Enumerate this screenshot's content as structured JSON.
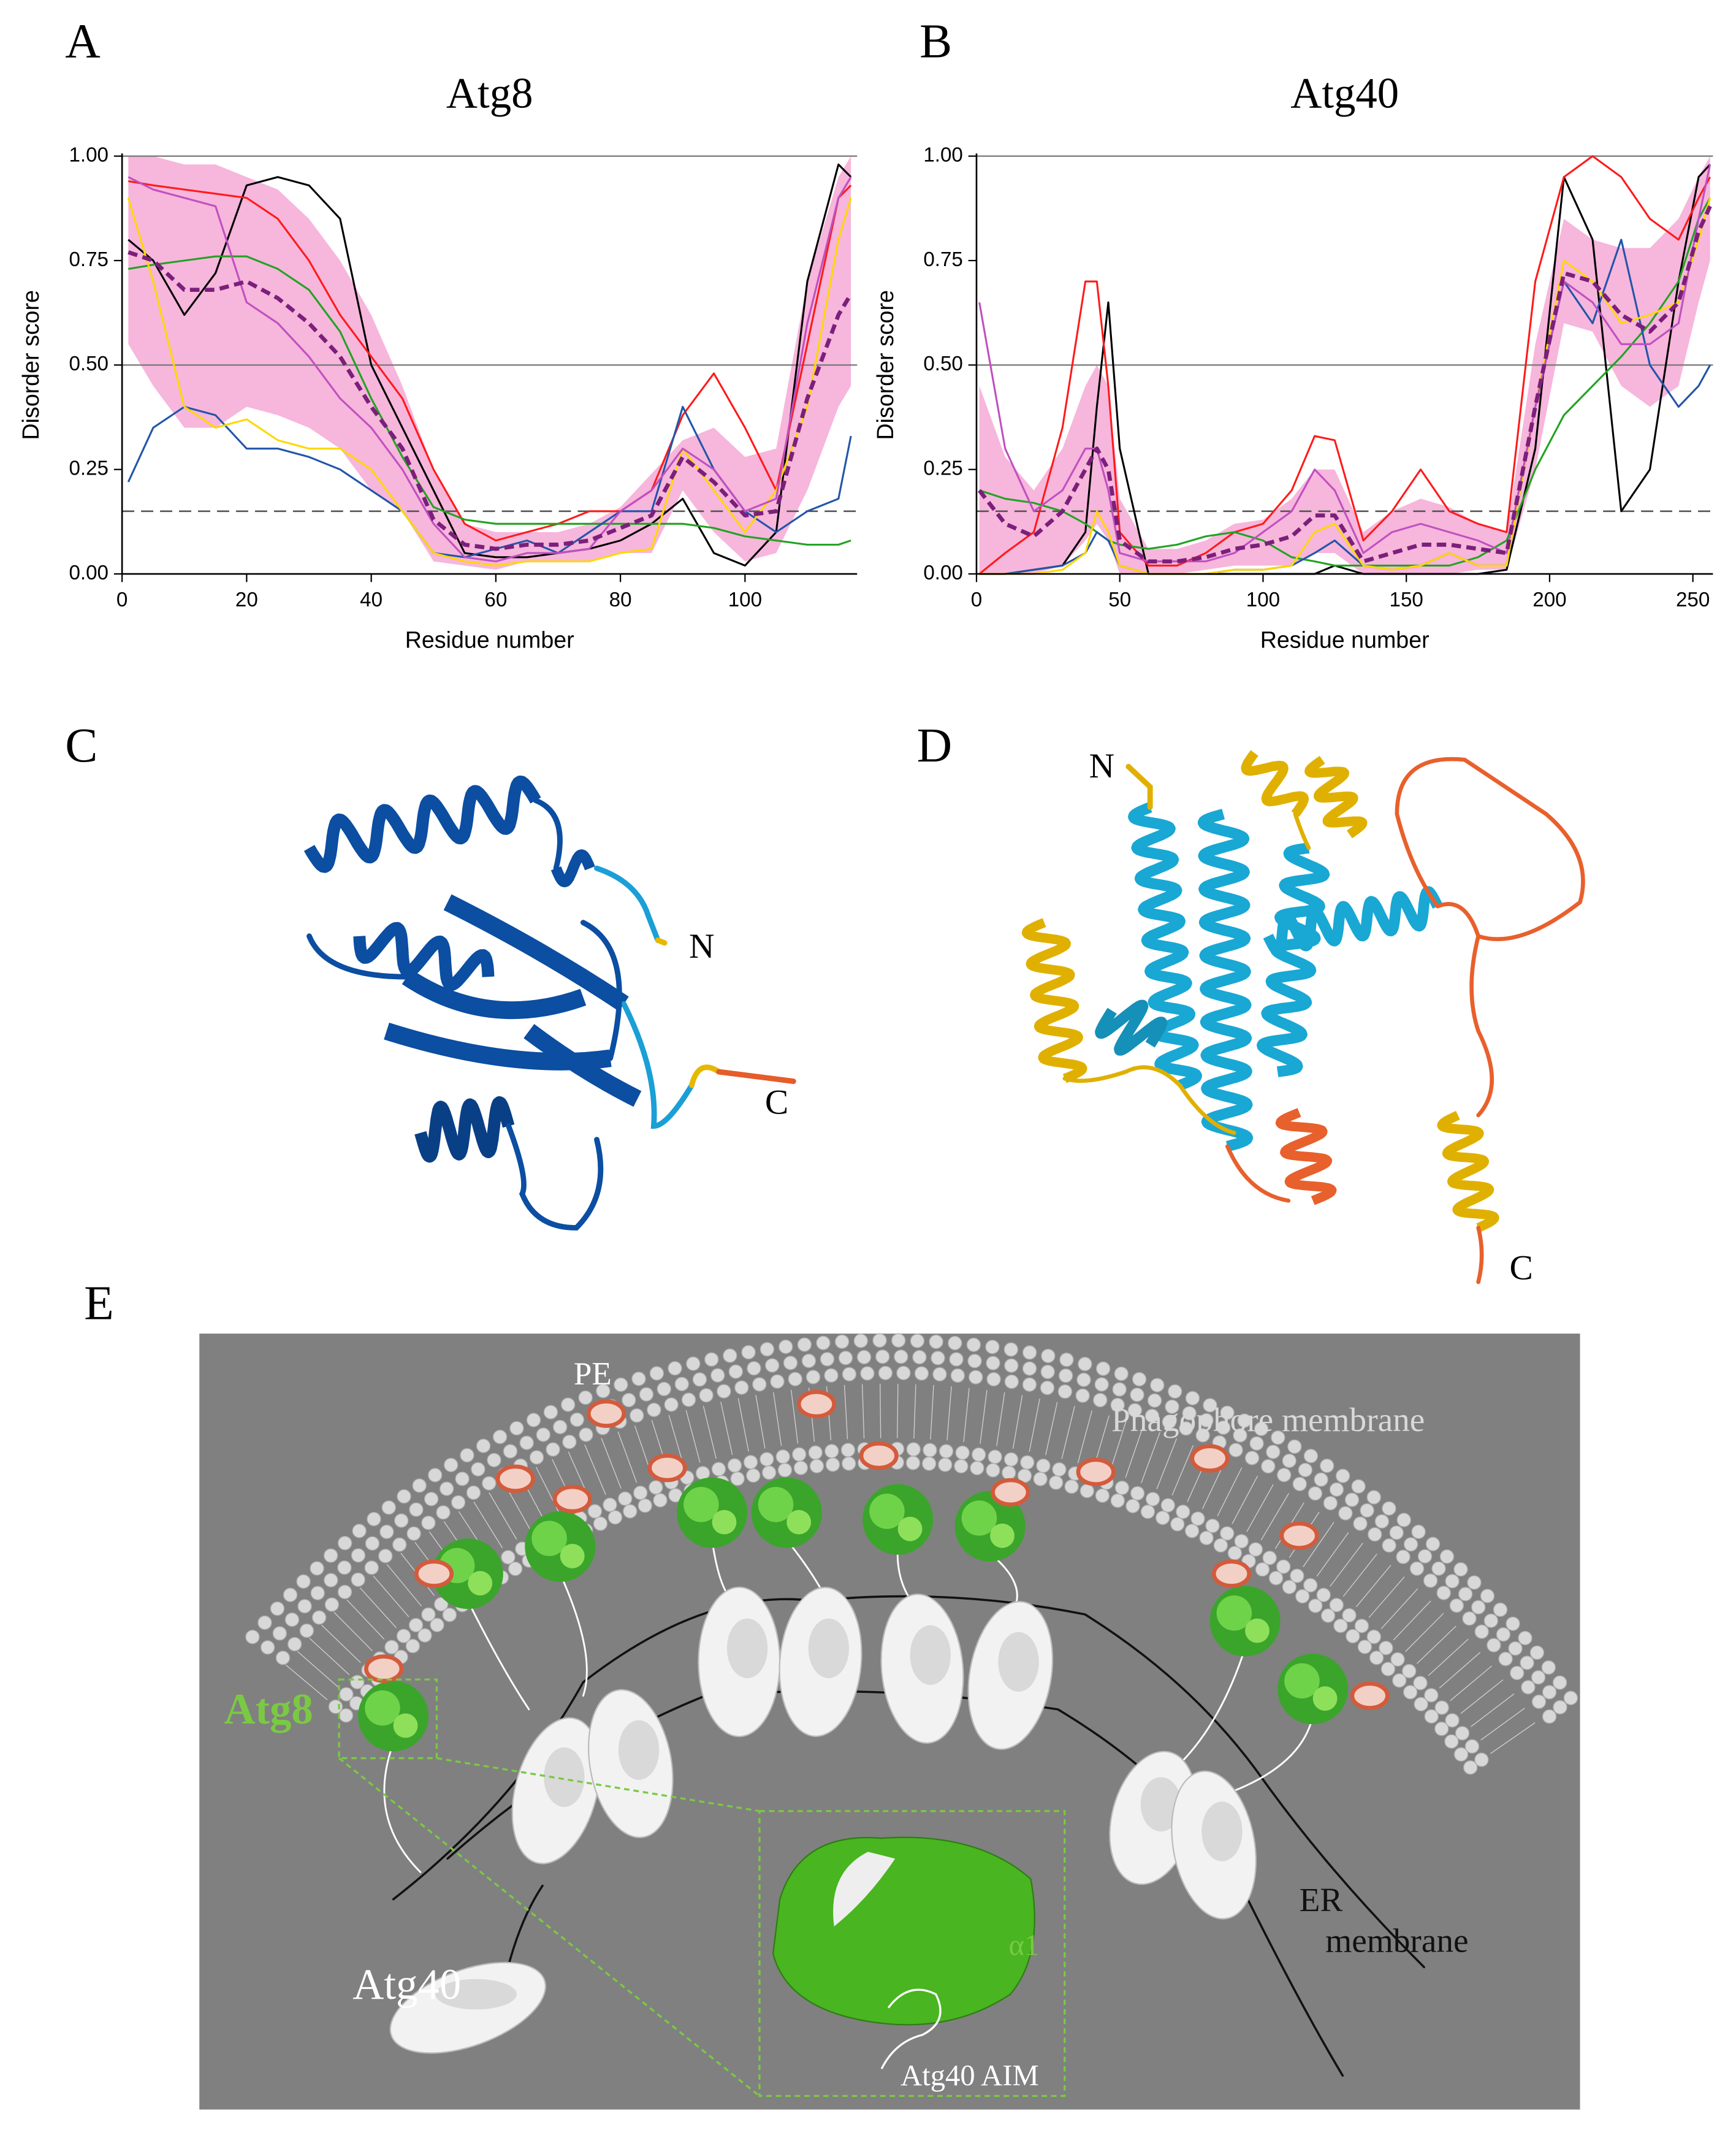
{
  "chart_data": [
    {
      "type": "line",
      "label": "A",
      "title": "Atg8",
      "xlabel": "Residue number",
      "ylabel": "Disorder score",
      "x": [
        1,
        5,
        10,
        15,
        20,
        25,
        30,
        35,
        40,
        45,
        50,
        55,
        60,
        65,
        70,
        75,
        80,
        85,
        90,
        95,
        100,
        105,
        110,
        115,
        117
      ],
      "xlim": [
        0,
        118
      ],
      "xticks": [
        0,
        20,
        40,
        60,
        80,
        100
      ],
      "ylim": [
        0,
        1
      ],
      "yticks": [
        {
          "value": 0,
          "label": "0.00"
        },
        {
          "value": 0.25,
          "label": "0.25"
        },
        {
          "value": 0.5,
          "label": "0.50"
        },
        {
          "value": 0.75,
          "label": "0.75"
        },
        {
          "value": 1,
          "label": "1.00"
        }
      ],
      "hlines": [
        0.5,
        1
      ],
      "threshold": 0.15,
      "band": {
        "color": "#f7b6dc",
        "upper": [
          1.0,
          1.0,
          0.98,
          0.98,
          0.95,
          0.92,
          0.85,
          0.75,
          0.62,
          0.45,
          0.25,
          0.12,
          0.1,
          0.1,
          0.1,
          0.12,
          0.16,
          0.24,
          0.32,
          0.35,
          0.28,
          0.3,
          0.7,
          0.95,
          1.0
        ],
        "lower": [
          0.55,
          0.45,
          0.35,
          0.35,
          0.4,
          0.38,
          0.35,
          0.3,
          0.2,
          0.15,
          0.03,
          0.02,
          0.01,
          0.03,
          0.03,
          0.03,
          0.05,
          0.05,
          0.2,
          0.1,
          0.03,
          0.05,
          0.2,
          0.4,
          0.45
        ]
      },
      "series": [
        {
          "color": "#000000",
          "values": [
            0.8,
            0.75,
            0.62,
            0.72,
            0.93,
            0.95,
            0.93,
            0.85,
            0.5,
            0.35,
            0.2,
            0.05,
            0.04,
            0.04,
            0.05,
            0.06,
            0.08,
            0.12,
            0.18,
            0.05,
            0.02,
            0.1,
            0.7,
            0.98,
            0.95
          ]
        },
        {
          "color": "#ff1a1a",
          "values": [
            0.94,
            0.93,
            0.92,
            0.91,
            0.9,
            0.85,
            0.75,
            0.62,
            0.52,
            0.42,
            0.25,
            0.12,
            0.08,
            0.1,
            0.12,
            0.15,
            0.15,
            0.2,
            0.38,
            0.48,
            0.35,
            0.2,
            0.55,
            0.9,
            0.93
          ]
        },
        {
          "color": "#21a321",
          "values": [
            0.73,
            0.74,
            0.75,
            0.76,
            0.76,
            0.73,
            0.68,
            0.58,
            0.42,
            0.28,
            0.16,
            0.13,
            0.12,
            0.12,
            0.12,
            0.12,
            0.12,
            0.12,
            0.12,
            0.11,
            0.09,
            0.08,
            0.07,
            0.07,
            0.08
          ]
        },
        {
          "color": "#2255aa",
          "values": [
            0.22,
            0.35,
            0.4,
            0.38,
            0.3,
            0.3,
            0.28,
            0.25,
            0.2,
            0.15,
            0.05,
            0.04,
            0.06,
            0.08,
            0.05,
            0.1,
            0.15,
            0.15,
            0.4,
            0.25,
            0.15,
            0.1,
            0.15,
            0.18,
            0.33
          ]
        },
        {
          "color": "#ffd700",
          "values": [
            0.9,
            0.7,
            0.4,
            0.35,
            0.37,
            0.32,
            0.3,
            0.3,
            0.25,
            0.15,
            0.05,
            0.03,
            0.02,
            0.03,
            0.03,
            0.03,
            0.05,
            0.06,
            0.3,
            0.2,
            0.1,
            0.2,
            0.4,
            0.8,
            0.9
          ]
        },
        {
          "color": "#c050c0",
          "values": [
            0.95,
            0.92,
            0.9,
            0.88,
            0.65,
            0.6,
            0.52,
            0.42,
            0.35,
            0.25,
            0.12,
            0.04,
            0.03,
            0.05,
            0.05,
            0.06,
            0.15,
            0.2,
            0.3,
            0.25,
            0.15,
            0.18,
            0.6,
            0.9,
            0.95
          ]
        },
        {
          "color": "#7b1f7b",
          "dashed": true,
          "values": [
            0.77,
            0.75,
            0.68,
            0.68,
            0.7,
            0.66,
            0.6,
            0.52,
            0.4,
            0.3,
            0.13,
            0.07,
            0.06,
            0.07,
            0.07,
            0.08,
            0.11,
            0.14,
            0.28,
            0.22,
            0.14,
            0.15,
            0.42,
            0.62,
            0.67
          ]
        }
      ]
    },
    {
      "type": "line",
      "label": "B",
      "title": "Atg40",
      "xlabel": "Residue number",
      "ylabel": "Disorder score",
      "x": [
        1,
        10,
        20,
        30,
        38,
        42,
        46,
        50,
        60,
        70,
        80,
        90,
        100,
        110,
        118,
        125,
        135,
        145,
        155,
        165,
        175,
        185,
        195,
        205,
        215,
        225,
        235,
        245,
        252,
        256
      ],
      "xlim": [
        0,
        257
      ],
      "xticks": [
        0,
        50,
        100,
        150,
        200,
        250
      ],
      "ylim": [
        0,
        1
      ],
      "yticks": [
        {
          "value": 0,
          "label": "0.00"
        },
        {
          "value": 0.25,
          "label": "0.25"
        },
        {
          "value": 0.5,
          "label": "0.50"
        },
        {
          "value": 0.75,
          "label": "0.75"
        },
        {
          "value": 1,
          "label": "1.00"
        }
      ],
      "hlines": [
        0.5,
        1
      ],
      "threshold": 0.15,
      "band": {
        "color": "#f7b6dc",
        "upper": [
          0.45,
          0.28,
          0.2,
          0.3,
          0.45,
          0.5,
          0.45,
          0.18,
          0.06,
          0.06,
          0.08,
          0.12,
          0.13,
          0.18,
          0.25,
          0.25,
          0.1,
          0.15,
          0.18,
          0.16,
          0.12,
          0.1,
          0.55,
          0.85,
          0.8,
          0.78,
          0.78,
          0.85,
          0.95,
          1.0
        ],
        "lower": [
          0.0,
          0.0,
          0.0,
          0.02,
          0.08,
          0.12,
          0.08,
          0.0,
          0.0,
          0.0,
          0.01,
          0.02,
          0.02,
          0.02,
          0.05,
          0.05,
          0.0,
          0.0,
          0.0,
          0.0,
          0.01,
          0.01,
          0.25,
          0.6,
          0.58,
          0.45,
          0.4,
          0.45,
          0.65,
          0.75
        ]
      },
      "series": [
        {
          "color": "#000000",
          "values": [
            0.0,
            0.0,
            0.01,
            0.02,
            0.1,
            0.4,
            0.65,
            0.3,
            0.0,
            0.0,
            0.0,
            0.0,
            0.0,
            0.0,
            0.0,
            0.02,
            0.0,
            0.0,
            0.0,
            0.0,
            0.0,
            0.01,
            0.3,
            0.95,
            0.8,
            0.15,
            0.25,
            0.7,
            0.95,
            0.98
          ]
        },
        {
          "color": "#ff1a1a",
          "values": [
            0.0,
            0.05,
            0.1,
            0.35,
            0.7,
            0.7,
            0.45,
            0.1,
            0.02,
            0.02,
            0.05,
            0.1,
            0.12,
            0.2,
            0.33,
            0.32,
            0.08,
            0.15,
            0.25,
            0.15,
            0.12,
            0.1,
            0.7,
            0.95,
            1.0,
            0.95,
            0.85,
            0.8,
            0.9,
            0.95
          ]
        },
        {
          "color": "#21a321",
          "values": [
            0.2,
            0.18,
            0.17,
            0.15,
            0.12,
            0.1,
            0.08,
            0.07,
            0.06,
            0.07,
            0.09,
            0.1,
            0.08,
            0.04,
            0.03,
            0.02,
            0.02,
            0.02,
            0.02,
            0.02,
            0.04,
            0.08,
            0.25,
            0.38,
            0.45,
            0.52,
            0.6,
            0.7,
            0.85,
            0.9
          ]
        },
        {
          "color": "#2255aa",
          "values": [
            0.0,
            0.0,
            0.01,
            0.02,
            0.05,
            0.1,
            0.08,
            0.02,
            0.0,
            0.0,
            0.0,
            0.01,
            0.01,
            0.02,
            0.05,
            0.08,
            0.02,
            0.01,
            0.02,
            0.05,
            0.02,
            0.02,
            0.4,
            0.7,
            0.6,
            0.8,
            0.5,
            0.4,
            0.45,
            0.5
          ]
        },
        {
          "color": "#ffd700",
          "values": [
            0.0,
            0.0,
            0.0,
            0.01,
            0.05,
            0.15,
            0.1,
            0.02,
            0.0,
            0.0,
            0.0,
            0.01,
            0.01,
            0.02,
            0.1,
            0.12,
            0.02,
            0.01,
            0.02,
            0.05,
            0.02,
            0.02,
            0.4,
            0.75,
            0.7,
            0.6,
            0.62,
            0.65,
            0.8,
            0.9
          ]
        },
        {
          "color": "#c050c0",
          "values": [
            0.65,
            0.3,
            0.15,
            0.2,
            0.3,
            0.3,
            0.2,
            0.05,
            0.03,
            0.03,
            0.03,
            0.05,
            0.1,
            0.15,
            0.25,
            0.2,
            0.05,
            0.1,
            0.12,
            0.1,
            0.08,
            0.05,
            0.4,
            0.7,
            0.65,
            0.55,
            0.55,
            0.6,
            0.85,
            0.98
          ]
        },
        {
          "color": "#7b1f7b",
          "dashed": true,
          "values": [
            0.2,
            0.12,
            0.09,
            0.15,
            0.25,
            0.3,
            0.25,
            0.08,
            0.03,
            0.03,
            0.04,
            0.06,
            0.07,
            0.09,
            0.14,
            0.14,
            0.03,
            0.05,
            0.07,
            0.07,
            0.06,
            0.05,
            0.4,
            0.72,
            0.7,
            0.62,
            0.58,
            0.65,
            0.82,
            0.88
          ]
        }
      ]
    }
  ],
  "structures": {
    "C": {
      "label": "C",
      "n_label": "N",
      "c_label": "C"
    },
    "D": {
      "label": "D",
      "n_label": "N",
      "c_label": "C"
    }
  },
  "diagram": {
    "label": "E",
    "pe_label": "PE",
    "phagophore_label": "Phagophore membrane",
    "atg8_label": "Atg8",
    "atg40_label": "Atg40",
    "er_label": [
      "ER",
      "membrane"
    ],
    "helix_label": "α1",
    "aim_label": "Atg40 AIM"
  }
}
